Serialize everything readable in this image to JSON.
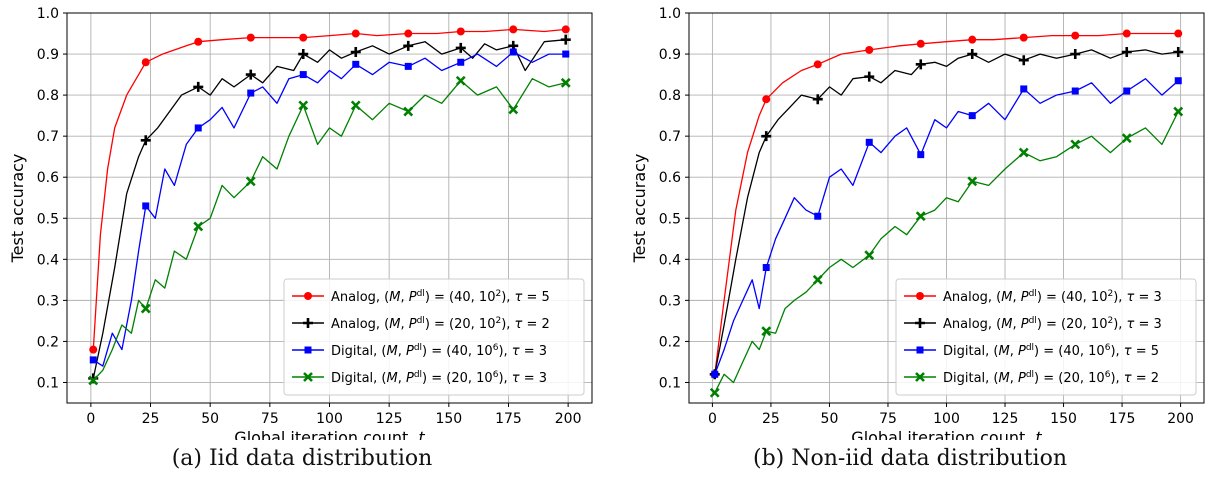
{
  "chart_data": [
    {
      "type": "line",
      "caption": "(a) Iid data distribution",
      "xlabel": "Global iteration count, t",
      "ylabel": "Test accuracy",
      "xlim": [
        -10,
        210
      ],
      "ylim": [
        0.05,
        1.0
      ],
      "xticks": [
        0,
        25,
        50,
        75,
        100,
        125,
        150,
        175,
        200
      ],
      "yticks": [
        0.1,
        0.2,
        0.3,
        0.4,
        0.5,
        0.6,
        0.7,
        0.8,
        0.9,
        1.0
      ],
      "grid": true,
      "legend_position": "lower-right",
      "series": [
        {
          "name": "Analog, (M, P^dl) = (40, 10^2), τ = 5",
          "legend_parts": [
            "Analog, (",
            "M",
            ", ",
            "P",
            "dl",
            ") = (40, 10",
            "2",
            "), ",
            "τ",
            " = 5"
          ],
          "color": "#ff0000",
          "marker": "circle",
          "x": [
            1,
            4,
            7,
            10,
            15,
            23,
            30,
            40,
            45,
            55,
            67,
            80,
            89,
            100,
            111,
            120,
            133,
            145,
            155,
            165,
            177,
            190,
            199
          ],
          "y": [
            0.18,
            0.46,
            0.62,
            0.72,
            0.8,
            0.88,
            0.9,
            0.92,
            0.93,
            0.935,
            0.94,
            0.94,
            0.94,
            0.945,
            0.95,
            0.945,
            0.95,
            0.95,
            0.955,
            0.955,
            0.96,
            0.955,
            0.96
          ],
          "marker_x": [
            1,
            23,
            45,
            67,
            89,
            111,
            133,
            155,
            177,
            199
          ],
          "marker_y": [
            0.18,
            0.88,
            0.93,
            0.94,
            0.94,
            0.95,
            0.95,
            0.955,
            0.96,
            0.96
          ]
        },
        {
          "name": "Analog, (M, P^dl) = (20, 10^2), τ = 2",
          "legend_parts": [
            "Analog, (",
            "M",
            ", ",
            "P",
            "dl",
            ") = (20, 10",
            "2",
            "), ",
            "τ",
            " = 2"
          ],
          "color": "#000000",
          "marker": "plus",
          "x": [
            1,
            5,
            10,
            15,
            20,
            23,
            28,
            33,
            38,
            45,
            50,
            55,
            60,
            67,
            72,
            78,
            85,
            89,
            95,
            100,
            105,
            111,
            118,
            125,
            133,
            140,
            147,
            155,
            160,
            165,
            170,
            177,
            182,
            190,
            199
          ],
          "y": [
            0.11,
            0.22,
            0.38,
            0.56,
            0.65,
            0.69,
            0.72,
            0.76,
            0.8,
            0.82,
            0.8,
            0.84,
            0.82,
            0.85,
            0.83,
            0.87,
            0.86,
            0.9,
            0.88,
            0.91,
            0.89,
            0.905,
            0.92,
            0.9,
            0.92,
            0.93,
            0.9,
            0.915,
            0.89,
            0.925,
            0.91,
            0.92,
            0.86,
            0.93,
            0.935
          ],
          "marker_x": [
            1,
            23,
            45,
            67,
            89,
            111,
            133,
            155,
            177,
            199
          ],
          "marker_y": [
            0.11,
            0.69,
            0.82,
            0.85,
            0.9,
            0.905,
            0.92,
            0.915,
            0.92,
            0.935
          ]
        },
        {
          "name": "Digital, (M, P^dl) = (40, 10^6), τ = 3",
          "legend_parts": [
            "Digital, (",
            "M",
            ", ",
            "P",
            "dl",
            ") = (40, 10",
            "6",
            "), ",
            "τ",
            " = 3"
          ],
          "color": "#0000ff",
          "marker": "square",
          "x": [
            1,
            5,
            9,
            13,
            17,
            20,
            23,
            27,
            31,
            35,
            40,
            45,
            50,
            55,
            60,
            67,
            72,
            78,
            83,
            89,
            95,
            100,
            105,
            111,
            118,
            125,
            133,
            140,
            147,
            155,
            162,
            170,
            177,
            185,
            192,
            199
          ],
          "y": [
            0.155,
            0.14,
            0.22,
            0.18,
            0.3,
            0.42,
            0.53,
            0.5,
            0.62,
            0.58,
            0.68,
            0.72,
            0.74,
            0.77,
            0.72,
            0.805,
            0.82,
            0.78,
            0.84,
            0.85,
            0.83,
            0.86,
            0.84,
            0.875,
            0.85,
            0.88,
            0.87,
            0.89,
            0.86,
            0.88,
            0.9,
            0.87,
            0.905,
            0.88,
            0.9,
            0.9
          ],
          "marker_x": [
            1,
            23,
            45,
            67,
            89,
            111,
            133,
            155,
            177,
            199
          ],
          "marker_y": [
            0.155,
            0.53,
            0.72,
            0.805,
            0.85,
            0.875,
            0.87,
            0.88,
            0.905,
            0.9
          ]
        },
        {
          "name": "Digital, (M, P^dl) = (20, 10^6), τ = 3",
          "legend_parts": [
            "Digital, (",
            "M",
            ", ",
            "P",
            "dl",
            ") = (20, 10",
            "6",
            "), ",
            "τ",
            " = 3"
          ],
          "color": "#008000",
          "marker": "x",
          "x": [
            1,
            5,
            9,
            13,
            17,
            20,
            23,
            27,
            31,
            35,
            40,
            45,
            50,
            55,
            60,
            67,
            72,
            78,
            83,
            89,
            95,
            100,
            105,
            111,
            118,
            125,
            133,
            140,
            147,
            155,
            162,
            170,
            177,
            185,
            192,
            199
          ],
          "y": [
            0.105,
            0.13,
            0.18,
            0.24,
            0.22,
            0.3,
            0.28,
            0.35,
            0.33,
            0.42,
            0.4,
            0.48,
            0.5,
            0.58,
            0.55,
            0.59,
            0.65,
            0.62,
            0.7,
            0.775,
            0.68,
            0.72,
            0.7,
            0.775,
            0.74,
            0.78,
            0.76,
            0.8,
            0.78,
            0.835,
            0.8,
            0.82,
            0.765,
            0.84,
            0.82,
            0.83
          ],
          "marker_x": [
            1,
            23,
            45,
            67,
            89,
            111,
            133,
            155,
            177,
            199
          ],
          "marker_y": [
            0.105,
            0.28,
            0.48,
            0.59,
            0.775,
            0.775,
            0.76,
            0.835,
            0.765,
            0.83
          ]
        }
      ]
    },
    {
      "type": "line",
      "caption": "(b) Non-iid data distribution",
      "xlabel": "Global iteration count, t",
      "ylabel": "Test accuracy",
      "xlim": [
        -10,
        210
      ],
      "ylim": [
        0.05,
        1.0
      ],
      "xticks": [
        0,
        25,
        50,
        75,
        100,
        125,
        150,
        175,
        200
      ],
      "yticks": [
        0.1,
        0.2,
        0.3,
        0.4,
        0.5,
        0.6,
        0.7,
        0.8,
        0.9,
        1.0
      ],
      "grid": true,
      "legend_position": "lower-right",
      "series": [
        {
          "name": "Analog, (M, P^dl) = (40, 10^2), τ = 3",
          "legend_parts": [
            "Analog, (",
            "M",
            ", ",
            "P",
            "dl",
            ") = (40, 10",
            "2",
            "), ",
            "τ",
            " = 3"
          ],
          "color": "#ff0000",
          "marker": "circle",
          "x": [
            1,
            5,
            10,
            15,
            20,
            23,
            30,
            38,
            45,
            55,
            67,
            80,
            89,
            100,
            111,
            120,
            133,
            145,
            155,
            165,
            177,
            190,
            199
          ],
          "y": [
            0.12,
            0.3,
            0.52,
            0.66,
            0.75,
            0.79,
            0.83,
            0.86,
            0.875,
            0.9,
            0.91,
            0.92,
            0.925,
            0.93,
            0.935,
            0.935,
            0.94,
            0.945,
            0.945,
            0.945,
            0.95,
            0.95,
            0.95
          ],
          "marker_x": [
            1,
            23,
            45,
            67,
            89,
            111,
            133,
            155,
            177,
            199
          ],
          "marker_y": [
            0.12,
            0.79,
            0.875,
            0.91,
            0.925,
            0.935,
            0.94,
            0.945,
            0.95,
            0.95
          ]
        },
        {
          "name": "Analog, (M, P^dl) = (20, 10^2), τ = 3",
          "legend_parts": [
            "Analog, (",
            "M",
            ", ",
            "P",
            "dl",
            ") = (20, 10",
            "2",
            "), ",
            "τ",
            " = 3"
          ],
          "color": "#000000",
          "marker": "plus",
          "x": [
            1,
            5,
            10,
            15,
            20,
            23,
            28,
            33,
            38,
            45,
            50,
            55,
            60,
            67,
            72,
            78,
            85,
            89,
            95,
            100,
            105,
            111,
            118,
            125,
            133,
            140,
            147,
            155,
            162,
            170,
            177,
            185,
            192,
            199
          ],
          "y": [
            0.12,
            0.24,
            0.4,
            0.55,
            0.66,
            0.7,
            0.74,
            0.77,
            0.8,
            0.79,
            0.82,
            0.8,
            0.84,
            0.845,
            0.83,
            0.86,
            0.85,
            0.875,
            0.88,
            0.87,
            0.89,
            0.9,
            0.88,
            0.9,
            0.885,
            0.9,
            0.89,
            0.9,
            0.91,
            0.89,
            0.905,
            0.91,
            0.9,
            0.905
          ],
          "marker_x": [
            1,
            23,
            45,
            67,
            89,
            111,
            133,
            155,
            177,
            199
          ],
          "marker_y": [
            0.12,
            0.7,
            0.79,
            0.845,
            0.875,
            0.9,
            0.885,
            0.9,
            0.905,
            0.905
          ]
        },
        {
          "name": "Digital, (M, P^dl) = (40, 10^6), τ = 5",
          "legend_parts": [
            "Digital, (",
            "M",
            ", ",
            "P",
            "dl",
            ") = (40, 10",
            "6",
            "), ",
            "τ",
            " = 5"
          ],
          "color": "#0000ff",
          "marker": "square",
          "x": [
            1,
            5,
            9,
            13,
            17,
            20,
            23,
            27,
            31,
            35,
            40,
            45,
            50,
            55,
            60,
            67,
            72,
            78,
            83,
            89,
            95,
            100,
            105,
            111,
            118,
            125,
            133,
            140,
            147,
            155,
            162,
            170,
            177,
            185,
            192,
            199
          ],
          "y": [
            0.12,
            0.18,
            0.25,
            0.3,
            0.35,
            0.28,
            0.38,
            0.45,
            0.5,
            0.55,
            0.52,
            0.505,
            0.6,
            0.62,
            0.58,
            0.685,
            0.66,
            0.7,
            0.72,
            0.655,
            0.74,
            0.72,
            0.76,
            0.75,
            0.78,
            0.74,
            0.815,
            0.78,
            0.8,
            0.81,
            0.83,
            0.78,
            0.81,
            0.84,
            0.8,
            0.835
          ],
          "marker_x": [
            1,
            23,
            45,
            67,
            89,
            111,
            133,
            155,
            177,
            199
          ],
          "marker_y": [
            0.12,
            0.38,
            0.505,
            0.685,
            0.655,
            0.75,
            0.815,
            0.81,
            0.81,
            0.835
          ]
        },
        {
          "name": "Digital, (M, P^dl) = (20, 10^6), τ = 2",
          "legend_parts": [
            "Digital, (",
            "M",
            ", ",
            "P",
            "dl",
            ") = (20, 10",
            "6",
            "), ",
            "τ",
            " = 2"
          ],
          "color": "#008000",
          "marker": "x",
          "x": [
            1,
            5,
            9,
            13,
            17,
            20,
            23,
            27,
            31,
            35,
            40,
            45,
            50,
            55,
            60,
            67,
            72,
            78,
            83,
            89,
            95,
            100,
            105,
            111,
            118,
            125,
            133,
            140,
            147,
            155,
            162,
            170,
            177,
            185,
            192,
            199
          ],
          "y": [
            0.075,
            0.12,
            0.1,
            0.15,
            0.2,
            0.18,
            0.225,
            0.22,
            0.28,
            0.3,
            0.32,
            0.35,
            0.38,
            0.4,
            0.38,
            0.41,
            0.45,
            0.48,
            0.46,
            0.505,
            0.52,
            0.55,
            0.54,
            0.59,
            0.58,
            0.62,
            0.66,
            0.64,
            0.65,
            0.68,
            0.7,
            0.66,
            0.695,
            0.72,
            0.68,
            0.76
          ],
          "marker_x": [
            1,
            23,
            45,
            67,
            89,
            111,
            133,
            155,
            177,
            199
          ],
          "marker_y": [
            0.075,
            0.225,
            0.35,
            0.41,
            0.505,
            0.59,
            0.66,
            0.68,
            0.695,
            0.76
          ]
        }
      ]
    }
  ]
}
